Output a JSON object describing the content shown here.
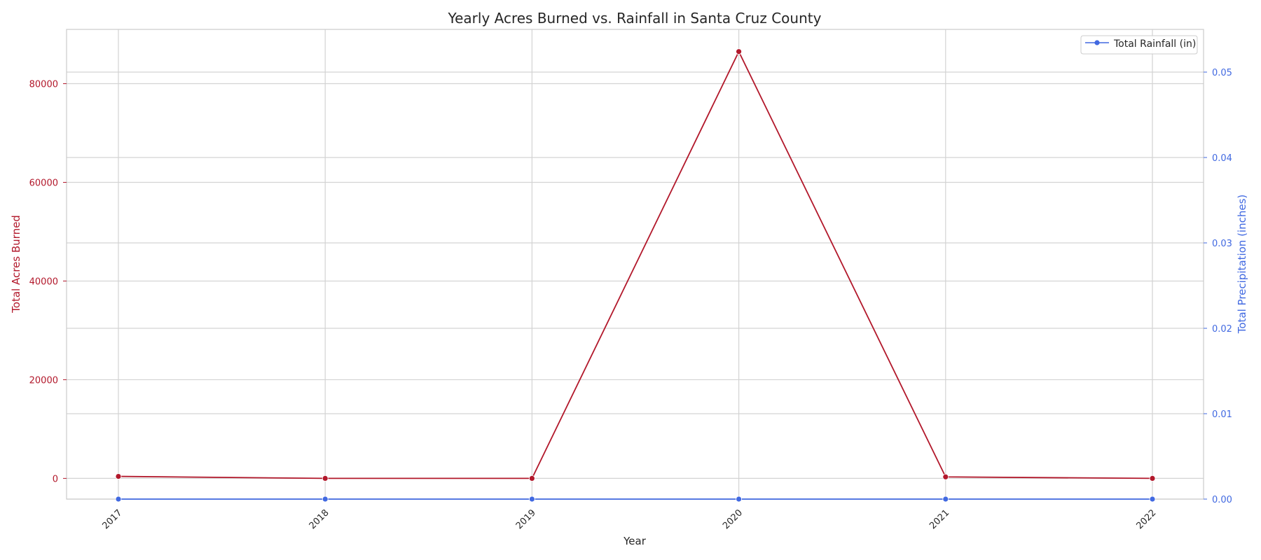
{
  "chart_data": {
    "type": "line",
    "title": "Yearly Acres Burned vs. Rainfall in Santa Cruz County",
    "xlabel": "Year",
    "categories": [
      "2017",
      "2018",
      "2019",
      "2020",
      "2021",
      "2022"
    ],
    "left_axis": {
      "label": "Total Acres Burned",
      "color": "#b2182b",
      "ylim": [
        -4200,
        91000
      ],
      "ticks": [
        "0",
        "20000",
        "40000",
        "60000",
        "80000"
      ]
    },
    "right_axis": {
      "label": "Total Precipitation (inches)",
      "color": "#4169e1",
      "ylim": [
        0.0,
        0.055
      ],
      "ticks": [
        "0.00",
        "0.01",
        "0.02",
        "0.03",
        "0.04",
        "0.05"
      ]
    },
    "series": [
      {
        "axis": "left",
        "color": "#b2182b",
        "values": [
          400,
          0,
          0,
          86500,
          300,
          0
        ]
      },
      {
        "name": "Total Rainfall (in)",
        "axis": "right",
        "color": "#4169e1",
        "values": [
          0,
          0,
          0,
          0,
          0,
          0
        ]
      }
    ],
    "grid": true,
    "legend_position": "top-right"
  }
}
